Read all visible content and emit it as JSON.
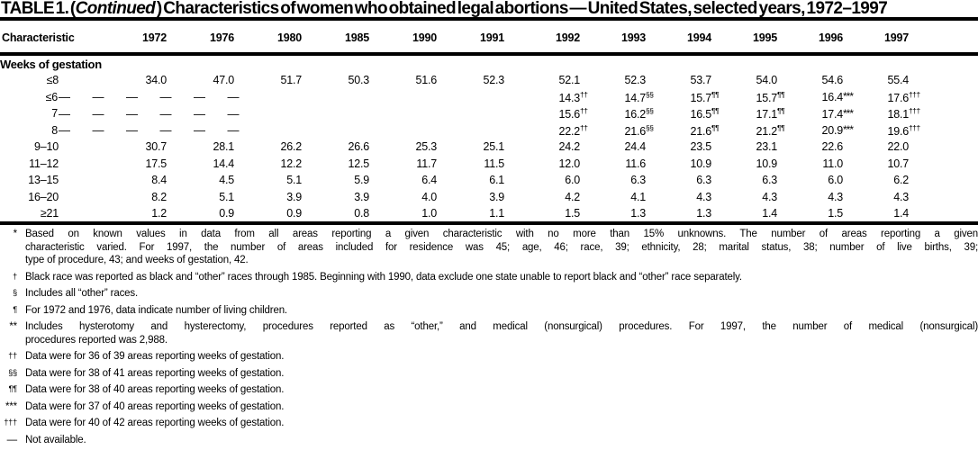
{
  "title": {
    "prefix": "TABLE 1. (",
    "continued": "Continued",
    "suffix": " ) Characteristics of women who obtained legal abortions — United States, selected years, 1972–1997"
  },
  "table": {
    "characteristic_header": "Characteristic",
    "years": [
      "1972",
      "1976",
      "1980",
      "1985",
      "1990",
      "1991",
      "1992",
      "1993",
      "1994",
      "1995",
      "1996",
      "1997"
    ],
    "section_label": "Weeks of gestation",
    "not_available_dash": "—",
    "rows": [
      {
        "label": "≤8",
        "indent": 1,
        "values": [
          "34.0",
          "47.0",
          "51.7",
          "50.3",
          "51.6",
          "52.3",
          "52.1",
          "52.3",
          "53.7",
          "54.0",
          "54.6",
          "55.4"
        ],
        "marks": [
          "",
          "",
          "",
          "",
          "",
          "",
          "",
          "",
          "",
          "",
          "",
          ""
        ]
      },
      {
        "label": "≤6",
        "indent": 2,
        "dash_group": true,
        "values": [
          "14.3",
          "14.7",
          "15.7",
          "15.7",
          "16.4",
          "17.6"
        ],
        "marks": [
          "††",
          "§§",
          "¶¶",
          "¶¶",
          "***",
          "†††"
        ]
      },
      {
        "label": "7",
        "indent": 2,
        "dash_group": true,
        "values": [
          "15.6",
          "16.2",
          "16.5",
          "17.1",
          "17.4",
          "18.1"
        ],
        "marks": [
          "††",
          "§§",
          "¶¶",
          "¶¶",
          "***",
          "†††"
        ]
      },
      {
        "label": "8",
        "indent": 2,
        "dash_group": true,
        "values": [
          "22.2",
          "21.6",
          "21.6",
          "21.2",
          "20.9",
          "19.6"
        ],
        "marks": [
          "††",
          "§§",
          "¶¶",
          "¶¶",
          "***",
          "†††"
        ]
      },
      {
        "label": "9–10",
        "indent": 1,
        "values": [
          "30.7",
          "28.1",
          "26.2",
          "26.6",
          "25.3",
          "25.1",
          "24.2",
          "24.4",
          "23.5",
          "23.1",
          "22.6",
          "22.0"
        ],
        "marks": [
          "",
          "",
          "",
          "",
          "",
          "",
          "",
          "",
          "",
          "",
          "",
          ""
        ]
      },
      {
        "label": "11–12",
        "indent": 1,
        "values": [
          "17.5",
          "14.4",
          "12.2",
          "12.5",
          "11.7",
          "11.5",
          "12.0",
          "11.6",
          "10.9",
          "10.9",
          "11.0",
          "10.7"
        ],
        "marks": [
          "",
          "",
          "",
          "",
          "",
          "",
          "",
          "",
          "",
          "",
          "",
          ""
        ]
      },
      {
        "label": "13–15",
        "indent": 1,
        "values": [
          "8.4",
          "4.5",
          "5.1",
          "5.9",
          "6.4",
          "6.1",
          "6.0",
          "6.3",
          "6.3",
          "6.3",
          "6.0",
          "6.2"
        ],
        "marks": [
          "",
          "",
          "",
          "",
          "",
          "",
          "",
          "",
          "",
          "",
          "",
          ""
        ]
      },
      {
        "label": "16–20",
        "indent": 1,
        "values": [
          "8.2",
          "5.1",
          "3.9",
          "3.9",
          "4.0",
          "3.9",
          "4.2",
          "4.1",
          "4.3",
          "4.3",
          "4.3",
          "4.3"
        ],
        "marks": [
          "",
          "",
          "",
          "",
          "",
          "",
          "",
          "",
          "",
          "",
          "",
          ""
        ]
      },
      {
        "label": "≥21",
        "indent": 1,
        "values": [
          "1.2",
          "0.9",
          "0.9",
          "0.8",
          "1.0",
          "1.1",
          "1.5",
          "1.3",
          "1.3",
          "1.4",
          "1.5",
          "1.4"
        ],
        "marks": [
          "",
          "",
          "",
          "",
          "",
          "",
          "",
          "",
          "",
          "",
          "",
          ""
        ]
      }
    ]
  },
  "footnotes": [
    {
      "marker": "*",
      "sup": false,
      "lines": [
        "Based on known values in data from all areas reporting a given characteristic with no more than 15% unknowns. The number of areas reporting a given",
        "characteristic varied. For 1997, the number of areas included for residence was 45; age, 46; race, 39; ethnicity, 28; marital status, 38; number of live births, 39;",
        "type of procedure, 43; and weeks of gestation, 42."
      ]
    },
    {
      "marker": "†",
      "sup": true,
      "lines": [
        "Black race was reported as black and “other” races through 1985. Beginning with 1990, data exclude one state unable to report black and “other” race separately."
      ]
    },
    {
      "marker": "§",
      "sup": true,
      "lines": [
        "Includes all “other” races."
      ]
    },
    {
      "marker": "¶",
      "sup": true,
      "lines": [
        "For 1972 and 1976, data indicate number of living children."
      ]
    },
    {
      "marker": "**",
      "sup": false,
      "lines": [
        "Includes hysterotomy and hysterectomy, procedures reported as “other,” and medical (nonsurgical) procedures. For 1997, the number of medical (nonsurgical)",
        "procedures reported was 2,988."
      ]
    },
    {
      "marker": "††",
      "sup": true,
      "lines": [
        "Data were for 36 of 39 areas reporting weeks of gestation."
      ]
    },
    {
      "marker": "§§",
      "sup": true,
      "lines": [
        "Data were for 38 of 41 areas reporting weeks of gestation."
      ]
    },
    {
      "marker": "¶¶",
      "sup": true,
      "lines": [
        "Data were for 38 of 40 areas reporting weeks of gestation."
      ]
    },
    {
      "marker": "***",
      "sup": false,
      "lines": [
        "Data were for 37 of 40 areas reporting weeks of gestation."
      ]
    },
    {
      "marker": "†††",
      "sup": true,
      "lines": [
        "Data were for 40 of 42 areas reporting weeks of gestation."
      ]
    },
    {
      "marker": "—",
      "sup": false,
      "lines": [
        "Not available."
      ]
    }
  ]
}
